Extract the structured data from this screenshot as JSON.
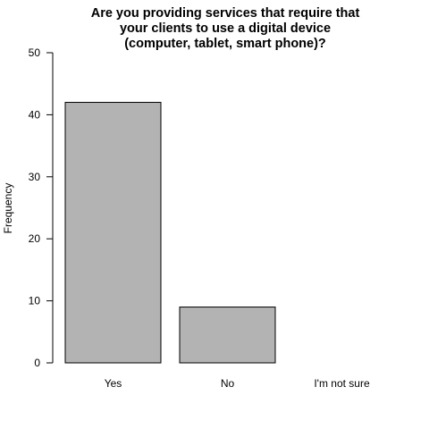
{
  "chart_data": {
    "type": "bar",
    "title_lines": [
      "Are you providing services that require that",
      "your clients to use a digital device",
      "(computer, tablet, smart phone)?"
    ],
    "categories": [
      "Yes",
      "No",
      "I'm not sure"
    ],
    "values": [
      42,
      9,
      0
    ],
    "ylabel": "Frequency",
    "xlabel": "",
    "ylim": [
      0,
      50
    ],
    "yticks": [
      0,
      10,
      20,
      30,
      40,
      50
    ],
    "bar_color": "#b3b3b3",
    "grid": false,
    "legend": "none"
  }
}
